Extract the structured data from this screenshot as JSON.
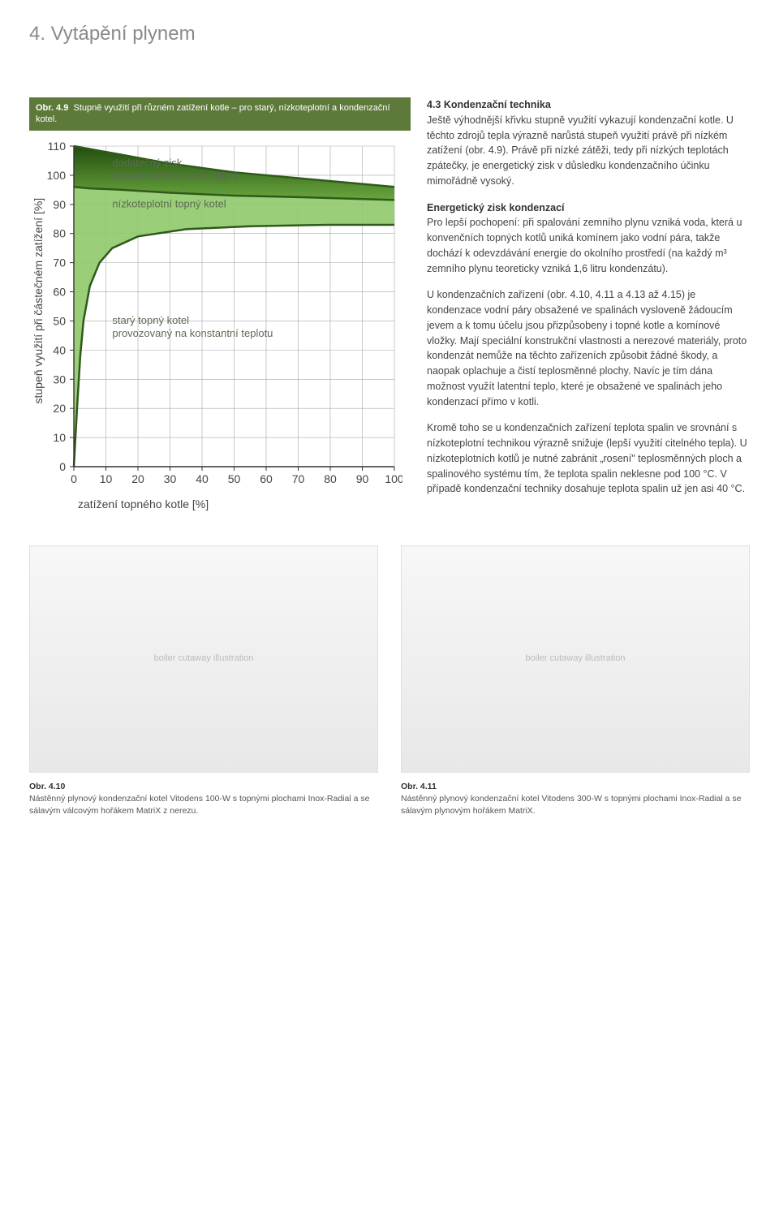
{
  "page": {
    "title": "4. Vytápění plynem"
  },
  "figure": {
    "caption_prefix": "Obr. 4.9",
    "caption_text": "Stupně využití při různém zatížení kotle – pro starý, nízkoteplotní a kondenzační kotel.",
    "y_axis_label": "stupeň využití při částečném zatížení [%]",
    "x_axis_label": "zatížení topného kotle [%]",
    "chart": {
      "type": "line-area",
      "xlim": [
        0,
        100
      ],
      "ylim": [
        0,
        110
      ],
      "x_ticks": [
        0,
        10,
        20,
        30,
        40,
        50,
        60,
        70,
        80,
        90,
        100
      ],
      "y_ticks": [
        0,
        10,
        20,
        30,
        40,
        50,
        60,
        70,
        80,
        90,
        100,
        110
      ],
      "background_color": "#ffffff",
      "grid_color": "#a7a7a7",
      "axis_color": "#333333",
      "annotations": {
        "kondenzacni_top": "dodatečný zisk\nkondenzačního kotle (plyn)",
        "nizkoteplotni": "nízkoteplotní topný kotel",
        "stary_top": "starý topný kotel",
        "stary_bottom": "provozovaný na konstantní teplotu"
      },
      "series": {
        "kondenzacni_line": {
          "color": "#2f5a1a",
          "width": 2.5,
          "points": [
            [
              0,
              110
            ],
            [
              5,
              109
            ],
            [
              15,
              107
            ],
            [
              30,
              104
            ],
            [
              50,
              101
            ],
            [
              70,
              99
            ],
            [
              85,
              97.5
            ],
            [
              100,
              96
            ]
          ]
        },
        "nizkoteplotni_line": {
          "color": "#2f5a1a",
          "width": 2.5,
          "points": [
            [
              0,
              96
            ],
            [
              5,
              95.5
            ],
            [
              15,
              95
            ],
            [
              30,
              94
            ],
            [
              50,
              93
            ],
            [
              70,
              92.5
            ],
            [
              85,
              92
            ],
            [
              100,
              91.5
            ]
          ]
        },
        "stary_line": {
          "color": "#2f5a1a",
          "width": 2.5,
          "points": [
            [
              0,
              0
            ],
            [
              1,
              20
            ],
            [
              2,
              38
            ],
            [
              3,
              50
            ],
            [
              5,
              62
            ],
            [
              8,
              70
            ],
            [
              12,
              75
            ],
            [
              20,
              79
            ],
            [
              35,
              81.5
            ],
            [
              55,
              82.5
            ],
            [
              80,
              83
            ],
            [
              100,
              83
            ]
          ]
        },
        "fill_top": {
          "fill_from": "#224d0f",
          "fill_to": "#6aa63e",
          "between": [
            "kondenzacni_line",
            "nizkoteplotni_line"
          ]
        },
        "fill_mid": {
          "fill": "#8fc96a",
          "opacity": 0.9,
          "between": [
            "nizkoteplotni_line",
            "stary_line"
          ]
        }
      }
    }
  },
  "body": {
    "h1": "4.3 Kondenzační technika",
    "p1": "Ještě výhodnější křivku stupně využití vykazují kondenzační kotle. U těchto zdrojů tepla výrazně narůstá stupeň využití právě při nízkém zatížení (obr. 4.9). Právě při nízké zátěži, tedy při nízkých teplotách zpátečky, je energetický zisk v důsledku kondenzačního účinku mimořádně vysoký.",
    "h2": "Energetický zisk kondenzací",
    "p2": "Pro lepší pochopení: při spalování zemního plynu vzniká voda, která u konvenčních topných kotlů uniká komínem jako vodní pára, takže dochází k odevzdávání energie do okolního prostředí (na každý m³ zemního plynu teoreticky vzniká 1,6 litru kondenzátu).",
    "p3": "U kondenzačních zařízení (obr. 4.10, 4.11 a 4.13 až 4.15) je kondenzace vodní páry obsažené ve spalinách vysloveně žádoucím jevem a k tomu účelu jsou přizpůsobeny i topné kotle a komínové vložky. Mají speciální konstrukční vlastnosti a nerezové materiály, proto kondenzát nemůže na těchto zařízeních způsobit žádné škody, a naopak oplachuje a čistí teplosměnné plochy. Navíc je tím dána možnost využít latentní teplo, které je obsažené ve spalinách jeho kondenzací přímo v kotli.",
    "p4": "Kromě toho se u kondenzačních zařízení teplota spalin ve srovnání s nízkoteplotní technikou výrazně snižuje (lepší využití citelného tepla). U nízkoteplotních kotlů je nutné zabránit „rosení\" teplosměnných ploch a spalinového systému tím, že teplota spalin neklesne pod 100 °C. V případě kondenzační techniky dosahuje teplota spalin už jen asi 40 °C."
  },
  "img_left": {
    "ref": "Obr. 4.10",
    "caption": "Nástěnný plynový kondenzační kotel Vitodens 100-W s topnými plochami Inox-Radial a se sálavým válcovým hořákem MatriX z nerezu.",
    "placeholder": "boiler cutaway illustration"
  },
  "img_right": {
    "ref": "Obr. 4.11",
    "caption": "Nástěnný plynový kondenzační kotel Vitodens 300-W s topnými plochami Inox-Radial a se sálavým plynovým hořákem MatriX.",
    "placeholder": "boiler cutaway illustration"
  }
}
